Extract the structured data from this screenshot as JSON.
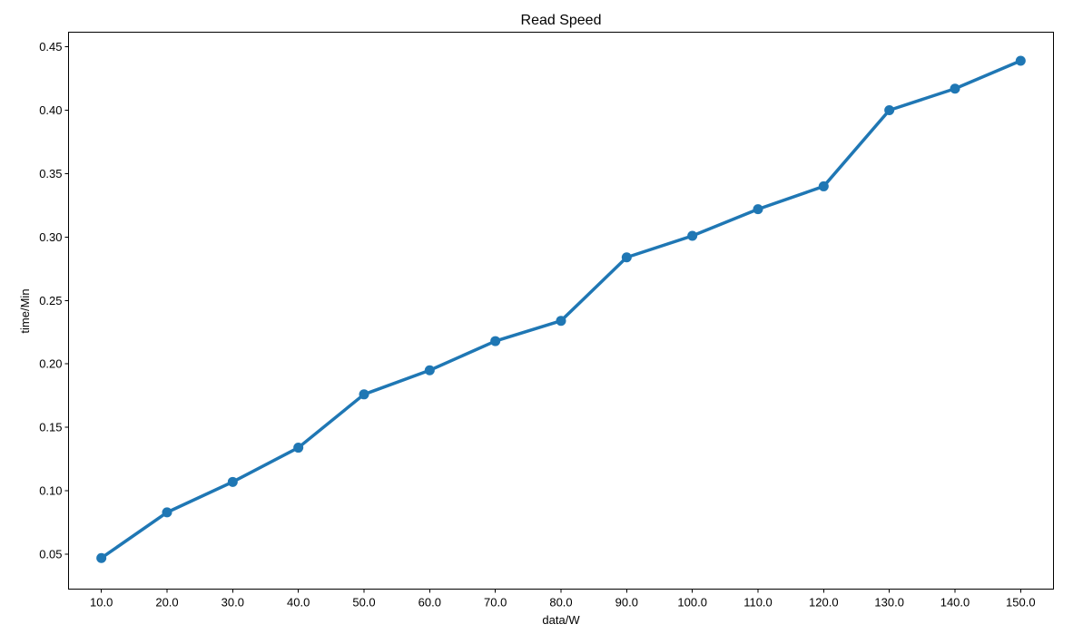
{
  "chart_data": {
    "type": "line",
    "title": "Read Speed",
    "xlabel": "data/W",
    "ylabel": "time/Min",
    "categories": [
      "10.0",
      "20.0",
      "30.0",
      "40.0",
      "50.0",
      "60.0",
      "70.0",
      "80.0",
      "90.0",
      "100.0",
      "110.0",
      "120.0",
      "130.0",
      "140.0",
      "150.0"
    ],
    "series": [
      {
        "values": [
          0.047,
          0.083,
          0.107,
          0.134,
          0.176,
          0.195,
          0.218,
          0.234,
          0.284,
          0.301,
          0.322,
          0.34,
          0.4,
          0.417,
          0.439
        ]
      }
    ],
    "ylim": [
      0.0225,
      0.4615
    ],
    "yticks": [
      0.05,
      0.1,
      0.15,
      0.2,
      0.25,
      0.3,
      0.35,
      0.4,
      0.45
    ],
    "ytick_labels": [
      "0.05",
      "0.10",
      "0.15",
      "0.20",
      "0.25",
      "0.30",
      "0.35",
      "0.40",
      "0.45"
    ],
    "grid": false,
    "legend": "none",
    "colors": {
      "series": "#1f77b4",
      "axes": "#000000",
      "background": "#ffffff"
    }
  }
}
